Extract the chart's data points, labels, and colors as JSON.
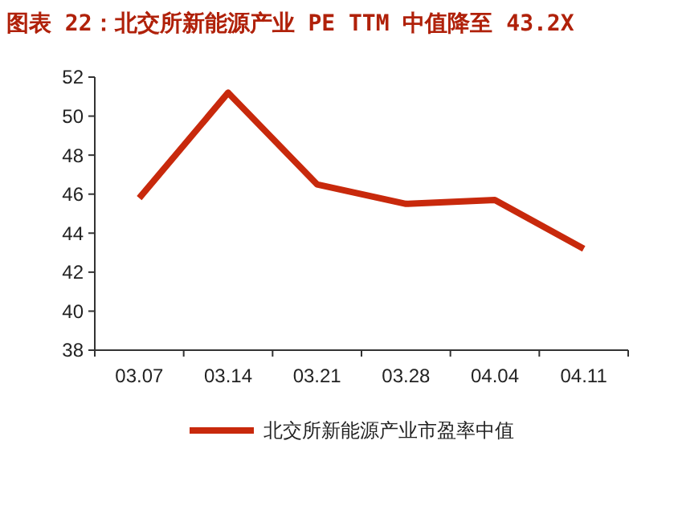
{
  "chart_data": {
    "type": "line",
    "title": "图表 22：北交所新能源产业 PE TTM 中值降至 43.2X",
    "categories": [
      "03.07",
      "03.14",
      "03.21",
      "03.28",
      "04.04",
      "04.11"
    ],
    "series": [
      {
        "name": "北交所新能源产业市盈率中值",
        "color": "#c8290c",
        "values": [
          45.8,
          51.2,
          46.5,
          45.5,
          45.7,
          43.2
        ]
      }
    ],
    "ylim": [
      38,
      52
    ],
    "yticks": [
      38,
      40,
      42,
      44,
      46,
      48,
      50,
      52
    ],
    "legend": "bottom",
    "grid": false,
    "marker": "none",
    "line_style": "solid"
  }
}
